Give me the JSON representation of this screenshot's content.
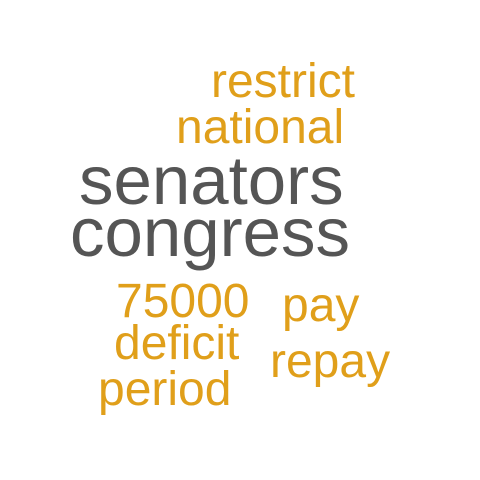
{
  "colors": {
    "accent": "#e09f1a",
    "dark": "#555555",
    "background": "#ffffff"
  },
  "words": {
    "restrict": {
      "text": "restrict",
      "color": "#e09f1a"
    },
    "national": {
      "text": "national",
      "color": "#e09f1a"
    },
    "senators": {
      "text": "senators",
      "color": "#555555"
    },
    "congress": {
      "text": "congress",
      "color": "#555555"
    },
    "n75000": {
      "text": "75000",
      "color": "#e09f1a"
    },
    "pay": {
      "text": "pay",
      "color": "#e09f1a"
    },
    "deficit": {
      "text": "deficit",
      "color": "#e09f1a"
    },
    "repay": {
      "text": "repay",
      "color": "#e09f1a"
    },
    "period": {
      "text": "period",
      "color": "#e09f1a"
    }
  }
}
